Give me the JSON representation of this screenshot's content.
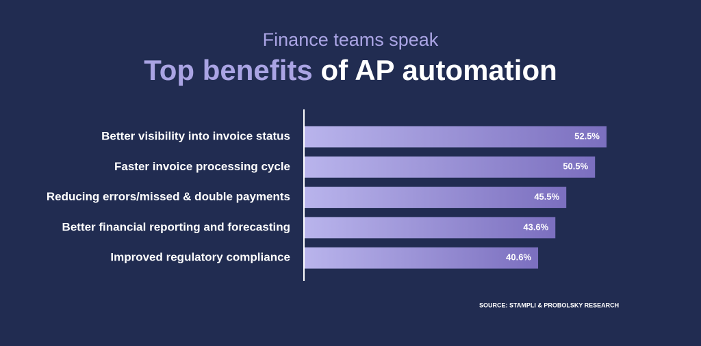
{
  "chart_data": {
    "type": "bar",
    "subtitle": "Finance teams speak",
    "title": {
      "highlight": "Top benefits",
      "rest": "of AP automation"
    },
    "categories": [
      "Better visibility into invoice status",
      "Faster invoice processing cycle",
      "Reducing errors/missed & double payments",
      "Better financial reporting and forecasting",
      "Improved regulatory compliance"
    ],
    "values": [
      52.5,
      50.5,
      45.5,
      43.6,
      40.6
    ],
    "value_labels": [
      "52.5%",
      "50.5%",
      "45.5%",
      "43.6%",
      "40.6%"
    ],
    "colors": [
      "#b9b4ec",
      "#7b6fbf"
    ],
    "source": "SOURCE:  STAMPLI & PROBOLSKY RESEARCH"
  }
}
